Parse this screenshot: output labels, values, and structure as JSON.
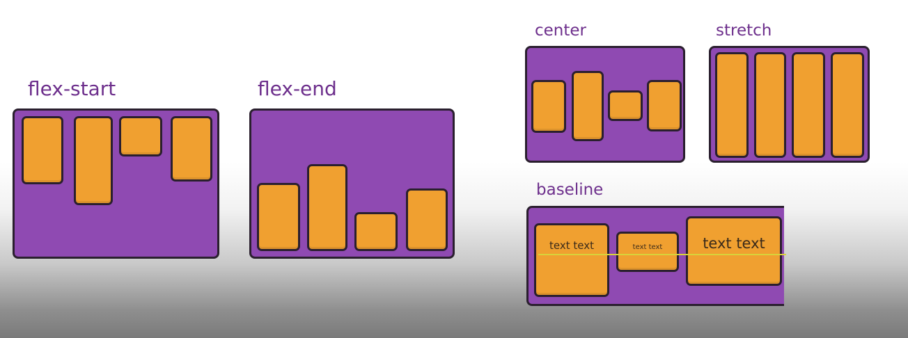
{
  "colors": {
    "panel": "#8f4ab2",
    "item": "#f0a030",
    "label": "#6d2f8c",
    "baseline": "#d8d23a"
  },
  "sections": {
    "flex_start": {
      "label": "flex-start"
    },
    "flex_end": {
      "label": "flex-end"
    },
    "center": {
      "label": "center"
    },
    "stretch": {
      "label": "stretch"
    },
    "baseline": {
      "label": "baseline",
      "items": [
        "text text",
        "text text",
        "text text"
      ]
    }
  }
}
